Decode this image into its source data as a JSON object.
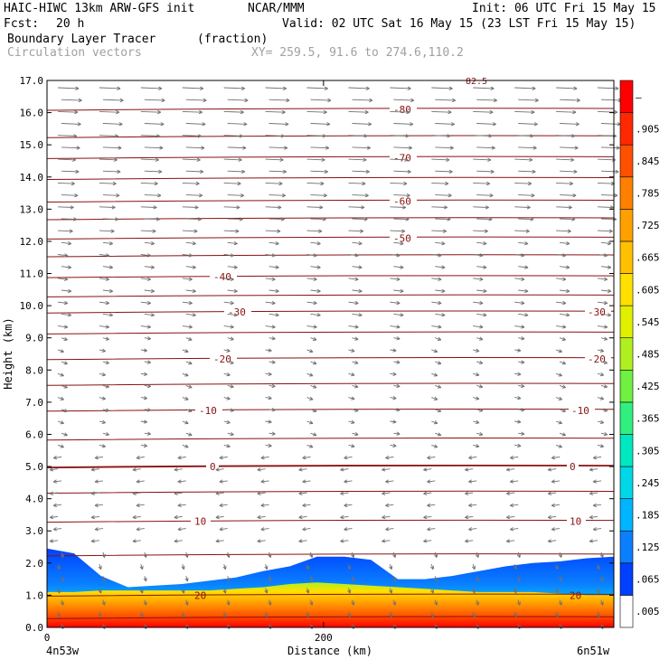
{
  "header": {
    "model": "HAIC-HIWC 13km ARW-GFS init",
    "org": "NCAR/MMM",
    "init": "Init: 06 UTC Fri 15 May 15",
    "fcst_label": "Fcst:",
    "fcst_value": "20 h",
    "valid": "Valid: 02 UTC Sat 16 May 15 (23 LST Fri 15 May 15)",
    "field": "Boundary Layer Tracer",
    "units": "(fraction)",
    "overlay": "Circulation vectors",
    "xy": "XY= 259.5, 91.6 to 274.6,110.2"
  },
  "chart_data": {
    "type": "heatmap",
    "xlabel": "Distance (km)",
    "ylabel": "Height (km)",
    "xlim": [
      0,
      410
    ],
    "ylim": [
      0,
      17
    ],
    "x_ticks": [
      {
        "value": 0,
        "label": "0"
      },
      {
        "value": 200,
        "label": "200"
      }
    ],
    "x_end_labels": [
      "4n53w",
      "6n51w"
    ],
    "y_ticks": [
      "0.0",
      "1.0",
      "2.0",
      "3.0",
      "4.0",
      "5.0",
      "6.0",
      "7.0",
      "8.0",
      "9.0",
      "10.0",
      "11.0",
      "12.0",
      "13.0",
      "14.0",
      "15.0",
      "16.0",
      "17.0"
    ],
    "colorbar": {
      "labels": [
        ".005",
        ".065",
        ".125",
        ".185",
        ".245",
        ".305",
        ".365",
        ".425",
        ".485",
        ".545",
        ".605",
        ".665",
        ".725",
        ".785",
        ".845",
        ".905",
        "–"
      ],
      "colors": [
        "#ffffff",
        "#0040ff",
        "#0a80ff",
        "#00b4ff",
        "#00d8e8",
        "#00e8c0",
        "#30f080",
        "#70f040",
        "#b0f020",
        "#e0f000",
        "#ffe000",
        "#ffc000",
        "#ffa000",
        "#ff8000",
        "#ff5000",
        "#ff2800",
        "#ff0000"
      ]
    },
    "isotherms": [
      {
        "height": 0.3,
        "label": ""
      },
      {
        "height": 1.0,
        "label": "20"
      },
      {
        "height": 2.25,
        "label": ""
      },
      {
        "height": 3.3,
        "label": "10"
      },
      {
        "height": 4.2,
        "label": ""
      },
      {
        "height": 5.0,
        "label": "0"
      },
      {
        "height": 5.85,
        "label": ""
      },
      {
        "height": 6.75,
        "label": "-10"
      },
      {
        "height": 7.55,
        "label": ""
      },
      {
        "height": 8.35,
        "label": "-20"
      },
      {
        "height": 9.15,
        "label": ""
      },
      {
        "height": 9.8,
        "label": "-30"
      },
      {
        "height": 10.3,
        "label": ""
      },
      {
        "height": 10.9,
        "label": "-40"
      },
      {
        "height": 11.55,
        "label": ""
      },
      {
        "height": 12.1,
        "label": "-50"
      },
      {
        "height": 12.7,
        "label": ""
      },
      {
        "height": 13.25,
        "label": "-60"
      },
      {
        "height": 13.95,
        "label": ""
      },
      {
        "height": 14.6,
        "label": "-70"
      },
      {
        "height": 15.25,
        "label": ""
      },
      {
        "height": 16.1,
        "label": "-80"
      }
    ],
    "top_label": "82.5",
    "tracer_top_km": [
      2.45,
      2.3,
      1.6,
      1.25,
      1.3,
      1.35,
      1.45,
      1.55,
      1.75,
      1.9,
      2.2,
      2.2,
      2.1,
      1.5,
      1.5,
      1.6,
      1.75,
      1.9,
      2.0,
      2.05,
      2.15,
      2.2
    ],
    "tracer_high_top_km": [
      1.1,
      1.1,
      1.15,
      1.15,
      1.15,
      1.15,
      1.15,
      1.2,
      1.25,
      1.35,
      1.4,
      1.35,
      1.3,
      1.25,
      1.2,
      1.15,
      1.1,
      1.1,
      1.1,
      1.05,
      1.0,
      1.0
    ]
  }
}
